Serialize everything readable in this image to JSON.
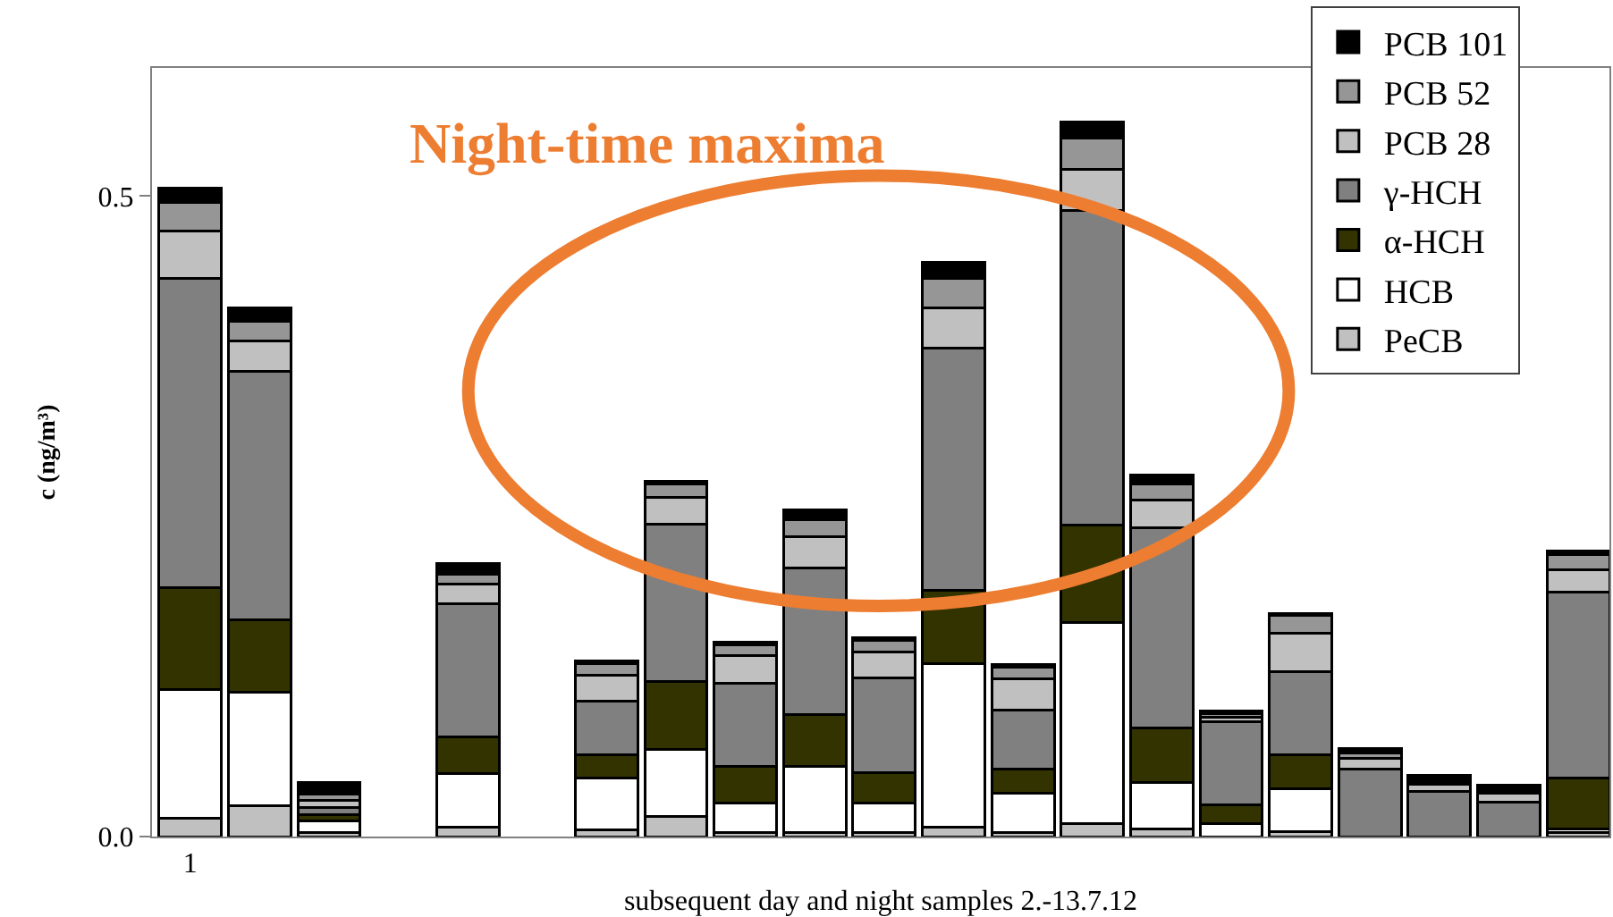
{
  "chart_data": {
    "type": "bar",
    "stacked": true,
    "ylabel": "c (ng/m³)",
    "xlabel": "subsequent day and night samples 2.-13.7.12",
    "categories": [
      "1",
      null,
      null,
      null,
      null,
      null,
      null,
      null,
      null,
      null,
      null,
      null,
      null,
      null,
      null,
      null,
      null,
      null,
      null,
      null,
      null
    ],
    "ylim": [
      0,
      0.6
    ],
    "yticks": [
      {
        "value": 0,
        "label": "0.0"
      },
      0.5
    ],
    "grid": false,
    "legend": "top right",
    "annotations": [
      "Night-time maxima"
    ],
    "series": [
      {
        "name": "PeCB",
        "color": "#c0c0c0",
        "values": [
          0.014,
          0.024,
          0.003,
          null,
          0.007,
          null,
          0.005,
          0.016,
          0.003,
          0.003,
          0.003,
          0.007,
          0.003,
          0.01,
          0.006,
          null,
          0.004,
          null,
          null,
          null,
          0.003
        ]
      },
      {
        "name": "HCB",
        "color": "#ffffff",
        "values": [
          0.101,
          0.089,
          0.009,
          null,
          0.042,
          null,
          0.041,
          0.052,
          0.023,
          0.052,
          0.023,
          0.128,
          0.031,
          0.157,
          0.036,
          0.01,
          0.033,
          0,
          0,
          0,
          0.003
        ]
      },
      {
        "name": "α-HCH",
        "color": "#333300",
        "values": [
          0.079,
          0.056,
          0.005,
          null,
          0.029,
          null,
          0.018,
          0.053,
          0.029,
          0.04,
          0.024,
          0.057,
          0.019,
          0.076,
          0.043,
          0.015,
          0.027,
          0,
          0,
          0,
          0.04
        ]
      },
      {
        "name": "γ-HCH",
        "color": "#808080",
        "values": [
          0.242,
          0.194,
          0.006,
          null,
          0.104,
          null,
          0.042,
          0.123,
          0.065,
          0.115,
          0.074,
          0.189,
          0.046,
          0.246,
          0.156,
          0.065,
          0.065,
          0.053,
          0.035,
          0.027,
          0.145
        ]
      },
      {
        "name": "PCB 28",
        "color": "#c0c0c0",
        "values": [
          0.037,
          0.024,
          0.005,
          null,
          0.015,
          null,
          0.02,
          0.021,
          0.021,
          0.024,
          0.02,
          0.032,
          0.024,
          0.032,
          0.022,
          0.003,
          0.03,
          0.008,
          0.006,
          0.007,
          0.017
        ]
      },
      {
        "name": "PCB 52",
        "color": "#969696",
        "values": [
          0.022,
          0.015,
          0.005,
          null,
          0.008,
          null,
          0.009,
          0.01,
          0.009,
          0.013,
          0.009,
          0.023,
          0.009,
          0.024,
          0.012,
          0.003,
          0.014,
          0.004,
          0.002,
          0.002,
          0.012
        ]
      },
      {
        "name": "PCB 101",
        "color": "#000000",
        "values": [
          0.011,
          0.011,
          0.009,
          null,
          0.008,
          null,
          0.002,
          0.002,
          0.002,
          0.008,
          0.002,
          0.012,
          0.002,
          0.013,
          0.007,
          0.002,
          0.001,
          0.004,
          0.005,
          0.004,
          0.003
        ]
      }
    ]
  }
}
